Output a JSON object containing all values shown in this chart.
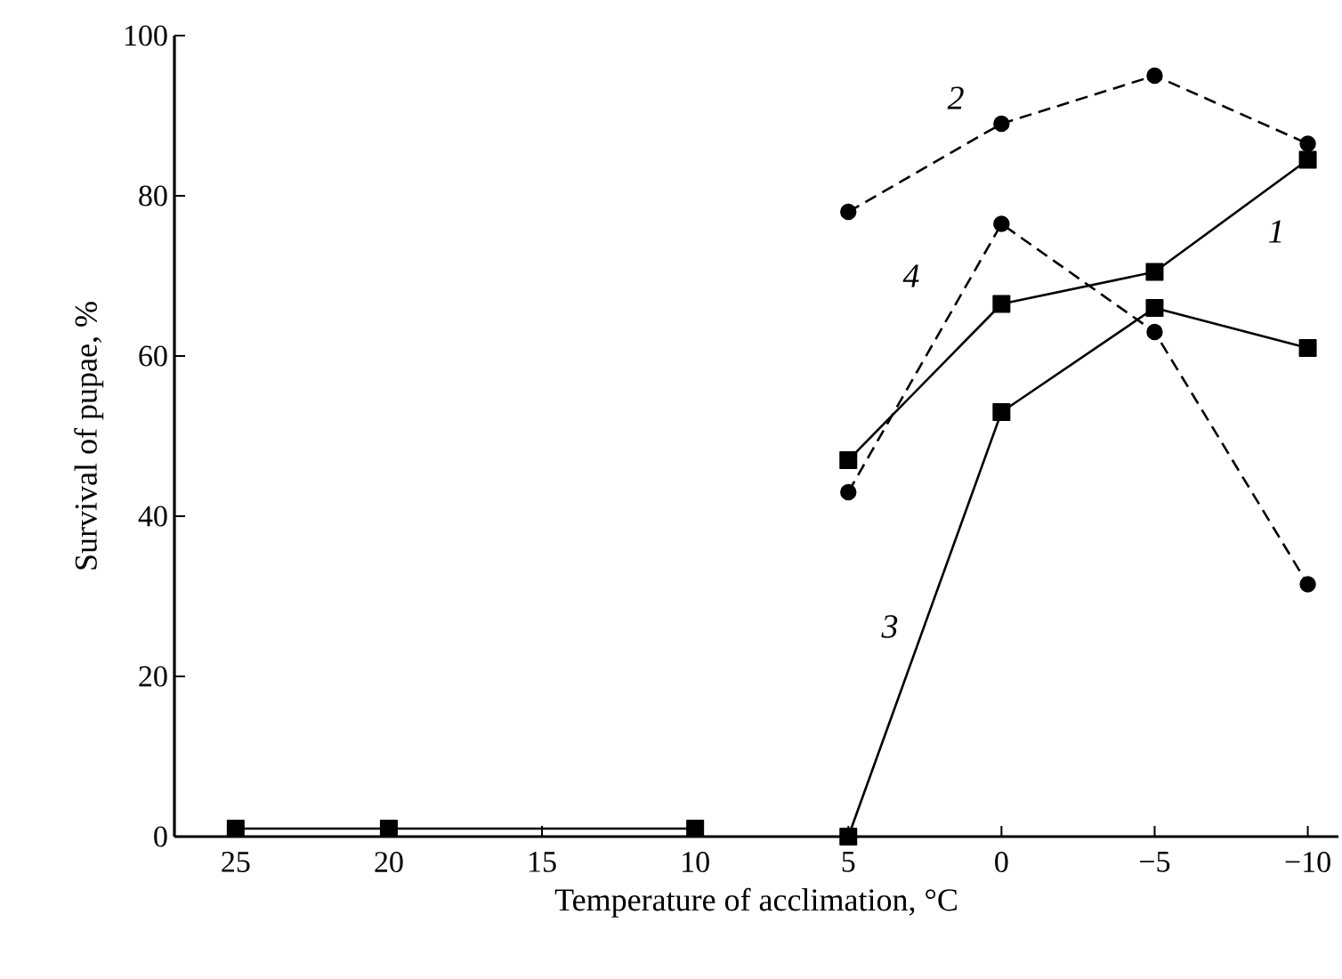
{
  "chart_data": {
    "type": "line",
    "xlabel": "Temperature of acclimation, °C",
    "ylabel": "Survival of pupae, %",
    "xlim": [
      27,
      -11
    ],
    "ylim": [
      0,
      100
    ],
    "xticks": [
      25,
      20,
      15,
      10,
      5,
      0,
      {
        "value": -5,
        "label": "−5"
      },
      {
        "value": -10,
        "label": "−10"
      }
    ],
    "yticks": [
      0,
      20,
      40,
      60,
      80,
      100
    ],
    "series": [
      {
        "color": "#000000",
        "marker": "square",
        "line_style": "solid",
        "x": [
          25,
          20,
          10
        ],
        "values": [
          1,
          1,
          1
        ]
      },
      {
        "color": "#000000",
        "marker": "square",
        "line_style": "solid",
        "x": [
          5,
          0,
          -5,
          -10
        ],
        "values": [
          47,
          66.5,
          70.5,
          84.5
        ]
      },
      {
        "color": "#000000",
        "marker": "circle",
        "line_style": "dashed",
        "x": [
          5,
          0,
          -5,
          -10
        ],
        "values": [
          78,
          89,
          95,
          86.5
        ]
      },
      {
        "color": "#000000",
        "marker": "square",
        "line_style": "solid",
        "x": [
          5,
          0,
          -5,
          -10
        ],
        "values": [
          0,
          53,
          66,
          61
        ]
      },
      {
        "color": "#000000",
        "marker": "circle",
        "line_style": "dashed",
        "x": [
          5,
          0,
          -5,
          -10
        ],
        "values": [
          43,
          76.5,
          63,
          31.5
        ]
      }
    ],
    "annotations": [
      "1",
      "2",
      "3",
      "4"
    ]
  }
}
